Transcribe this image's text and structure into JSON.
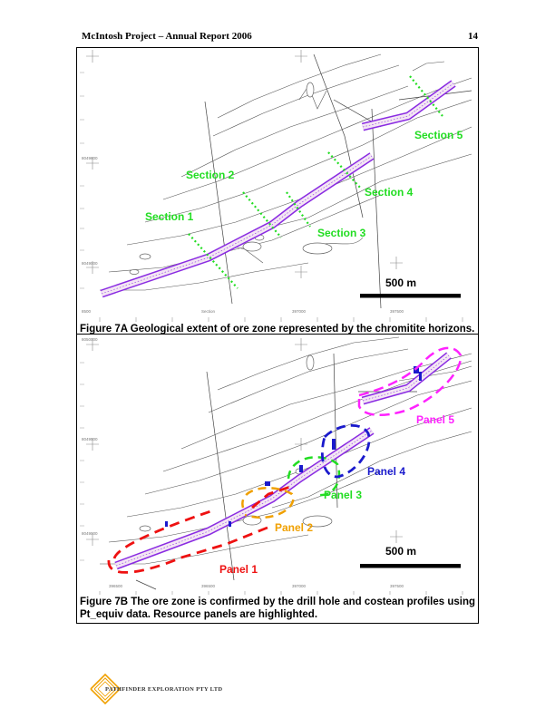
{
  "header": {
    "title": "McIntosh Project – Annual Report  2006",
    "page_number": "14"
  },
  "figure_a": {
    "caption": "Figure 7A Geological extent of ore zone represented by the chromitite horizons.",
    "sections": [
      "Section 1",
      "Section 2",
      "Section 3",
      "Section 4",
      "Section 5"
    ],
    "scale_label": "500 m",
    "coord_labels": [
      "8049600",
      "8049000",
      "8500",
      "Section",
      "397000",
      "397500"
    ],
    "colors": {
      "section_label": "#22dd22",
      "ore_zone": "#8a2be2"
    }
  },
  "figure_b": {
    "caption": "Figure 7B The ore zone is confirmed by the drill hole and costean profiles using Pt_equiv data.  Resource panels are highlighted.",
    "panels": [
      {
        "label": "Panel 1",
        "color": "#ee1111"
      },
      {
        "label": "Panel 2",
        "color": "#f0a000"
      },
      {
        "label": "Panel 3",
        "color": "#22dd22"
      },
      {
        "label": "Panel 4",
        "color": "#1a1acc"
      },
      {
        "label": "Panel 5",
        "color": "#ff22ff"
      }
    ],
    "scale_label": "500 m",
    "coord_labels": [
      "8050000",
      "8049500",
      "8049000",
      "396500",
      "396500",
      "397000",
      "397500"
    ]
  },
  "footer": {
    "logo_text": "PATHFINDER EXPLORATION PTY LTD"
  }
}
